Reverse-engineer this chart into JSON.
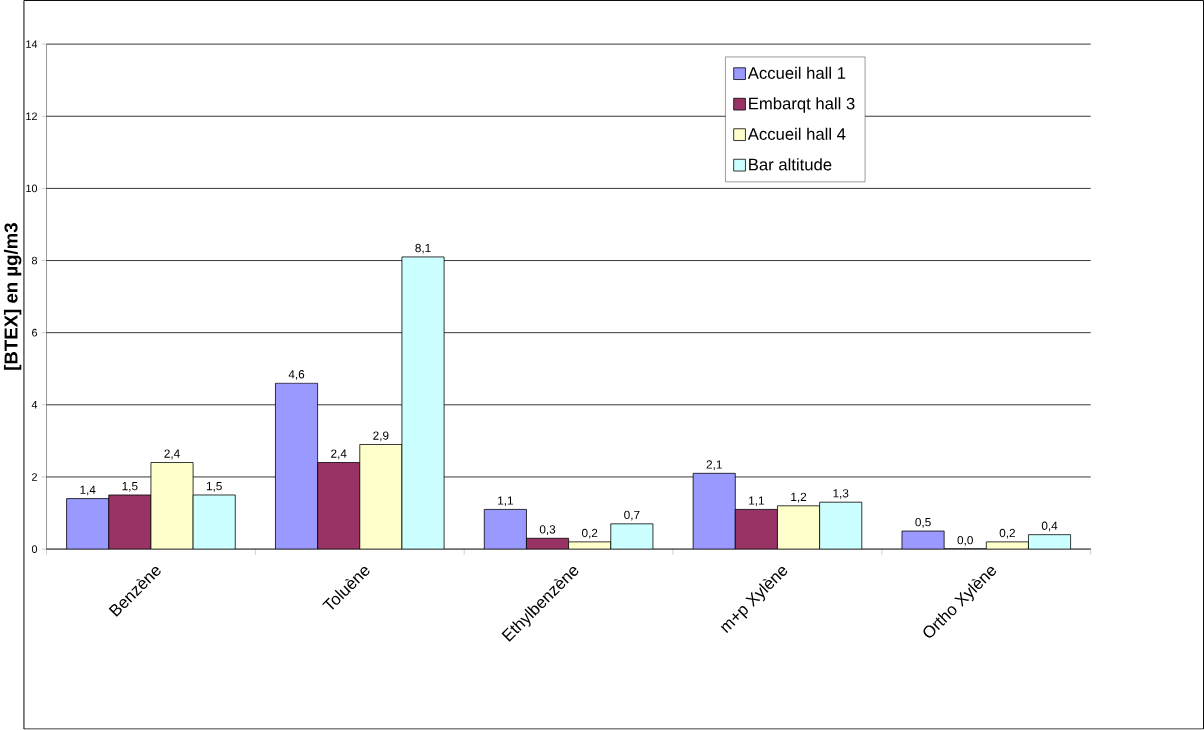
{
  "chart_data": {
    "type": "bar",
    "ylabel": "[BTEX] en µg/m3",
    "categories": [
      "Benzène",
      "Toluène",
      "Ethylbenzène",
      "m+p Xylène",
      "Ortho Xylène"
    ],
    "series": [
      {
        "name": "Accueil hall 1",
        "color": "#9999ff",
        "values": [
          1.4,
          4.6,
          1.1,
          2.1,
          0.5
        ],
        "value_labels": [
          "1,4",
          "4,6",
          "1,1",
          "2,1",
          "0,5"
        ]
      },
      {
        "name": "Embarqt hall 3",
        "color": "#993366",
        "values": [
          1.5,
          2.4,
          0.3,
          1.1,
          0.0
        ],
        "value_labels": [
          "1,5",
          "2,4",
          "0,3",
          "1,1",
          "0,0"
        ]
      },
      {
        "name": "Accueil hall 4",
        "color": "#ffffcc",
        "values": [
          2.4,
          2.9,
          0.2,
          1.2,
          0.2
        ],
        "value_labels": [
          "2,4",
          "2,9",
          "0,2",
          "1,2",
          "0,2"
        ]
      },
      {
        "name": "Bar altitude",
        "color": "#ccffff",
        "values": [
          1.5,
          8.1,
          0.7,
          1.3,
          0.4
        ],
        "value_labels": [
          "1,5",
          "8,1",
          "0,7",
          "1,3",
          "0,4"
        ]
      }
    ],
    "ylim": [
      0,
      14
    ],
    "yticks": [
      0,
      2,
      4,
      6,
      8,
      10,
      12,
      14
    ],
    "grid": "y",
    "legend": "top right"
  }
}
